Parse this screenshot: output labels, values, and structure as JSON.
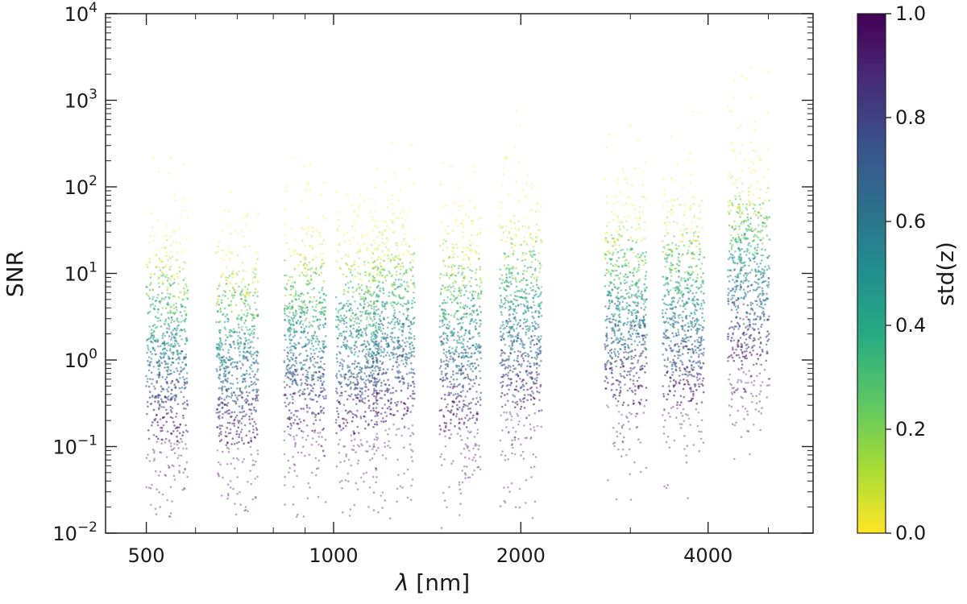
{
  "chart_data": {
    "type": "scatter",
    "title": "",
    "xlabel_symbol": "λ",
    "xlabel_unit": " [nm]",
    "ylabel": "SNR",
    "x_scale": "log",
    "y_scale": "log",
    "xlim": [
      430,
      5900
    ],
    "ylim": [
      0.01,
      10000
    ],
    "x_ticks": [
      {
        "value": 500,
        "label": "500"
      },
      {
        "value": 1000,
        "label": "1000"
      },
      {
        "value": 2000,
        "label": "2000"
      },
      {
        "value": 4000,
        "label": "4000"
      }
    ],
    "y_ticks": [
      {
        "value": 0.01,
        "exp": "−2"
      },
      {
        "value": 0.1,
        "exp": "−1"
      },
      {
        "value": 1,
        "exp": "0"
      },
      {
        "value": 10,
        "exp": "1"
      },
      {
        "value": 100,
        "exp": "2"
      },
      {
        "value": 1000,
        "exp": "3"
      },
      {
        "value": 10000,
        "exp": "4"
      }
    ],
    "y_tick_base": "10",
    "grid": false,
    "colorbar": {
      "label": "std(z)",
      "range": [
        0,
        1
      ],
      "colormap": "viridis",
      "ticks": [
        {
          "value": 0.0,
          "label": "0.0"
        },
        {
          "value": 0.2,
          "label": "0.2"
        },
        {
          "value": 0.4,
          "label": "0.4"
        },
        {
          "value": 0.6,
          "label": "0.6"
        },
        {
          "value": 0.8,
          "label": "0.8"
        },
        {
          "value": 1.0,
          "label": "1.0"
        }
      ]
    },
    "bands": [
      {
        "center_nm": 540,
        "snr_low": 0.015,
        "snr_high": 250,
        "snr_median": 1.2
      },
      {
        "center_nm": 700,
        "snr_low": 0.015,
        "snr_high": 400,
        "snr_median": 1.0
      },
      {
        "center_nm": 900,
        "snr_low": 0.012,
        "snr_high": 1500,
        "snr_median": 1.5
      },
      {
        "center_nm": 1090,
        "snr_low": 0.015,
        "snr_high": 90,
        "snr_median": 1.4
      },
      {
        "center_nm": 1250,
        "snr_low": 0.011,
        "snr_high": 1200,
        "snr_median": 1.8
      },
      {
        "center_nm": 1600,
        "snr_low": 0.011,
        "snr_high": 1200,
        "snr_median": 1.6
      },
      {
        "center_nm": 2000,
        "snr_low": 0.011,
        "snr_high": 1800,
        "snr_median": 2.5
      },
      {
        "center_nm": 2950,
        "snr_low": 0.012,
        "snr_high": 1800,
        "snr_median": 3.0
      },
      {
        "center_nm": 3650,
        "snr_low": 0.025,
        "snr_high": 1200,
        "snr_median": 3.0
      },
      {
        "center_nm": 4650,
        "snr_low": 0.04,
        "snr_high": 3500,
        "snr_median": 8.0
      }
    ]
  }
}
